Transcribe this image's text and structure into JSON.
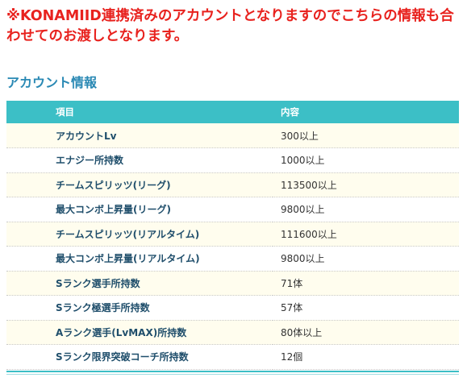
{
  "notice": "※KONAMIID連携済みのアカウントとなりますのでこちらの情報も合わせてのお渡しとなります。",
  "section_title": "アカウント情報",
  "table": {
    "headers": [
      "項目",
      "内容"
    ],
    "rows": [
      {
        "name": "アカウントLv",
        "value": "300以上"
      },
      {
        "name": "エナジー所持数",
        "value": "1000以上"
      },
      {
        "name": "チームスピリッツ(リーグ)",
        "value": "113500以上"
      },
      {
        "name": "最大コンボ上昇量(リーグ)",
        "value": "9800以上"
      },
      {
        "name": "チームスピリッツ(リアルタイム)",
        "value": "111600以上"
      },
      {
        "name": "最大コンボ上昇量(リアルタイム)",
        "value": "9800以上"
      },
      {
        "name": "Sランク選手所持数",
        "value": "71体"
      },
      {
        "name": "Sランク極選手所持数",
        "value": "57体"
      },
      {
        "name": "Aランク選手(LvMAX)所持数",
        "value": "80体以上"
      },
      {
        "name": "Sランク限界突破コーチ所持数",
        "value": "12個"
      }
    ]
  },
  "colors": {
    "notice": "#e8221e",
    "title": "#2a89b4",
    "header_bg": "#3cbfc6",
    "row_alt_bg": "#fffdee"
  }
}
